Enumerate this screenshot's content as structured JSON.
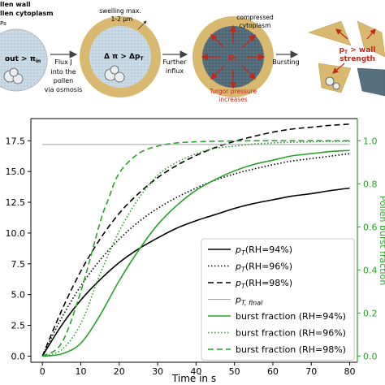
{
  "schematic": {
    "stage1": {
      "legend_wall": "llen wall",
      "legend_cytoplasm": "llen cytoplasm",
      "legend_ps": "Ps",
      "pressure_text": "out > π",
      "pressure_sub": "in"
    },
    "arrow1": {
      "line1": "Flux J",
      "line2": "into the",
      "line3": "pollen",
      "line4": "via osmosis"
    },
    "stage2": {
      "swelling_line1": "swelling max.",
      "swelling_line2": "1-2 µm",
      "delta_text": "Δ π > Δp",
      "delta_sub": "T"
    },
    "arrow2": {
      "line1": "Further",
      "line2": "influx"
    },
    "stage3": {
      "compressed_line1": "compressed",
      "compressed_line2": "cytoplasm",
      "pt_text": "p",
      "pt_sub": "T",
      "turgor_line1": "Turgor pressure",
      "turgor_line2": "increases"
    },
    "arrow3": {
      "line1": "Bursting"
    },
    "stage4": {
      "text_line1": "p",
      "text_sub": "T",
      "text_line1_rest": " > wall",
      "text_line2": "strength"
    }
  },
  "colors": {
    "black": "#000000",
    "green": "#2ca02c",
    "final": "#a0a0a0",
    "wall": "#d9b870",
    "cytoplasm": "#c9dbe6",
    "dark_cytoplasm": "#4a6070",
    "red": "#c0281c"
  },
  "chart_data": {
    "type": "line",
    "xlabel": "Time in s",
    "ylabel": "",
    "y2label": "Pollen burst fraction",
    "xlim": [
      -3,
      82
    ],
    "ylim": [
      -0.5,
      19.3
    ],
    "y2lim": [
      -0.0286,
      1.103
    ],
    "xticks": [
      0,
      10,
      20,
      30,
      40,
      50,
      60,
      70,
      80
    ],
    "yticks": [
      0.0,
      2.5,
      5.0,
      7.5,
      10.0,
      12.5,
      15.0,
      17.5
    ],
    "y2ticks": [
      0.0,
      0.2,
      0.4,
      0.6,
      0.8,
      1.0
    ],
    "grid": false,
    "legend_position": "lower right",
    "series": [
      {
        "name": "p_T(RH=94%)",
        "axis": "left",
        "color": "black",
        "style": "solid",
        "x": [
          0,
          5,
          10,
          15,
          20,
          25,
          30,
          35,
          40,
          45,
          50,
          55,
          60,
          65,
          70,
          75,
          80
        ],
        "y": [
          0,
          2.5,
          4.55,
          6.2,
          7.6,
          8.7,
          9.6,
          10.4,
          11.0,
          11.5,
          12.0,
          12.4,
          12.7,
          13.0,
          13.2,
          13.45,
          13.65
        ]
      },
      {
        "name": "p_T(RH=96%)",
        "axis": "left",
        "color": "black",
        "style": "dotted",
        "x": [
          0,
          5,
          10,
          15,
          20,
          25,
          30,
          35,
          40,
          45,
          50,
          55,
          60,
          65,
          70,
          75,
          80
        ],
        "y": [
          0,
          3.1,
          5.7,
          7.8,
          9.5,
          10.9,
          12.0,
          12.9,
          13.65,
          14.3,
          14.8,
          15.2,
          15.55,
          15.85,
          16.05,
          16.25,
          16.45
        ]
      },
      {
        "name": "p_T(RH=98%)",
        "axis": "left",
        "color": "black",
        "style": "dashed",
        "x": [
          0,
          5,
          10,
          15,
          20,
          25,
          30,
          35,
          40,
          45,
          50,
          55,
          60,
          65,
          70,
          75,
          80
        ],
        "y": [
          0,
          3.7,
          6.9,
          9.5,
          11.6,
          13.2,
          14.5,
          15.5,
          16.3,
          16.95,
          17.45,
          17.85,
          18.2,
          18.45,
          18.6,
          18.75,
          18.85
        ]
      },
      {
        "name": "p_T,final",
        "axis": "left",
        "color": "final",
        "style": "solid",
        "x": [
          0,
          80
        ],
        "y": [
          17.2,
          17.2
        ]
      },
      {
        "name": "burst fraction (RH=94%)",
        "axis": "right",
        "color": "green",
        "style": "solid",
        "x": [
          0,
          5,
          10,
          15,
          20,
          25,
          30,
          35,
          40,
          45,
          50,
          55,
          60,
          65,
          70,
          75,
          80
        ],
        "y": [
          0,
          0.01,
          0.06,
          0.19,
          0.35,
          0.49,
          0.61,
          0.7,
          0.77,
          0.82,
          0.86,
          0.89,
          0.91,
          0.93,
          0.94,
          0.95,
          0.955
        ]
      },
      {
        "name": "burst fraction (RH=96%)",
        "axis": "right",
        "color": "green",
        "style": "dotted",
        "x": [
          0,
          5,
          10,
          15,
          20,
          25,
          30,
          35,
          40,
          45,
          50,
          55,
          60,
          65,
          70,
          75,
          80
        ],
        "y": [
          0,
          0.03,
          0.15,
          0.38,
          0.58,
          0.73,
          0.84,
          0.9,
          0.94,
          0.965,
          0.975,
          0.985,
          0.99,
          0.993,
          0.995,
          0.997,
          0.998
        ]
      },
      {
        "name": "burst fraction (RH=98%)",
        "axis": "right",
        "color": "green",
        "style": "dashed",
        "x": [
          0,
          5,
          10,
          15,
          17,
          20,
          25,
          30,
          35,
          40,
          45,
          50,
          55,
          60,
          65,
          70,
          75,
          80
        ],
        "y": [
          0,
          0.06,
          0.3,
          0.62,
          0.72,
          0.85,
          0.94,
          0.975,
          0.99,
          0.995,
          0.998,
          0.999,
          1.0,
          1.0,
          1.0,
          1.0,
          1.0,
          1.0
        ]
      }
    ],
    "legend": [
      {
        "label": "p",
        "sub": "T",
        "rest": "(RH=94%)",
        "color": "black",
        "style": "solid"
      },
      {
        "label": "p",
        "sub": "T",
        "rest": "(RH=96%)",
        "color": "black",
        "style": "dotted"
      },
      {
        "label": "p",
        "sub": "T",
        "rest": "(RH=98%)",
        "color": "black",
        "style": "dashed"
      },
      {
        "label": "p",
        "sub": "T, final",
        "rest": "",
        "color": "final",
        "style": "solid"
      },
      {
        "label": "burst fraction (RH=94%)",
        "sub": "",
        "rest": "",
        "color": "green",
        "style": "solid"
      },
      {
        "label": "burst fraction (RH=96%)",
        "sub": "",
        "rest": "",
        "color": "green",
        "style": "dotted"
      },
      {
        "label": "burst fraction (RH=98%)",
        "sub": "",
        "rest": "",
        "color": "green",
        "style": "dashed"
      }
    ]
  }
}
